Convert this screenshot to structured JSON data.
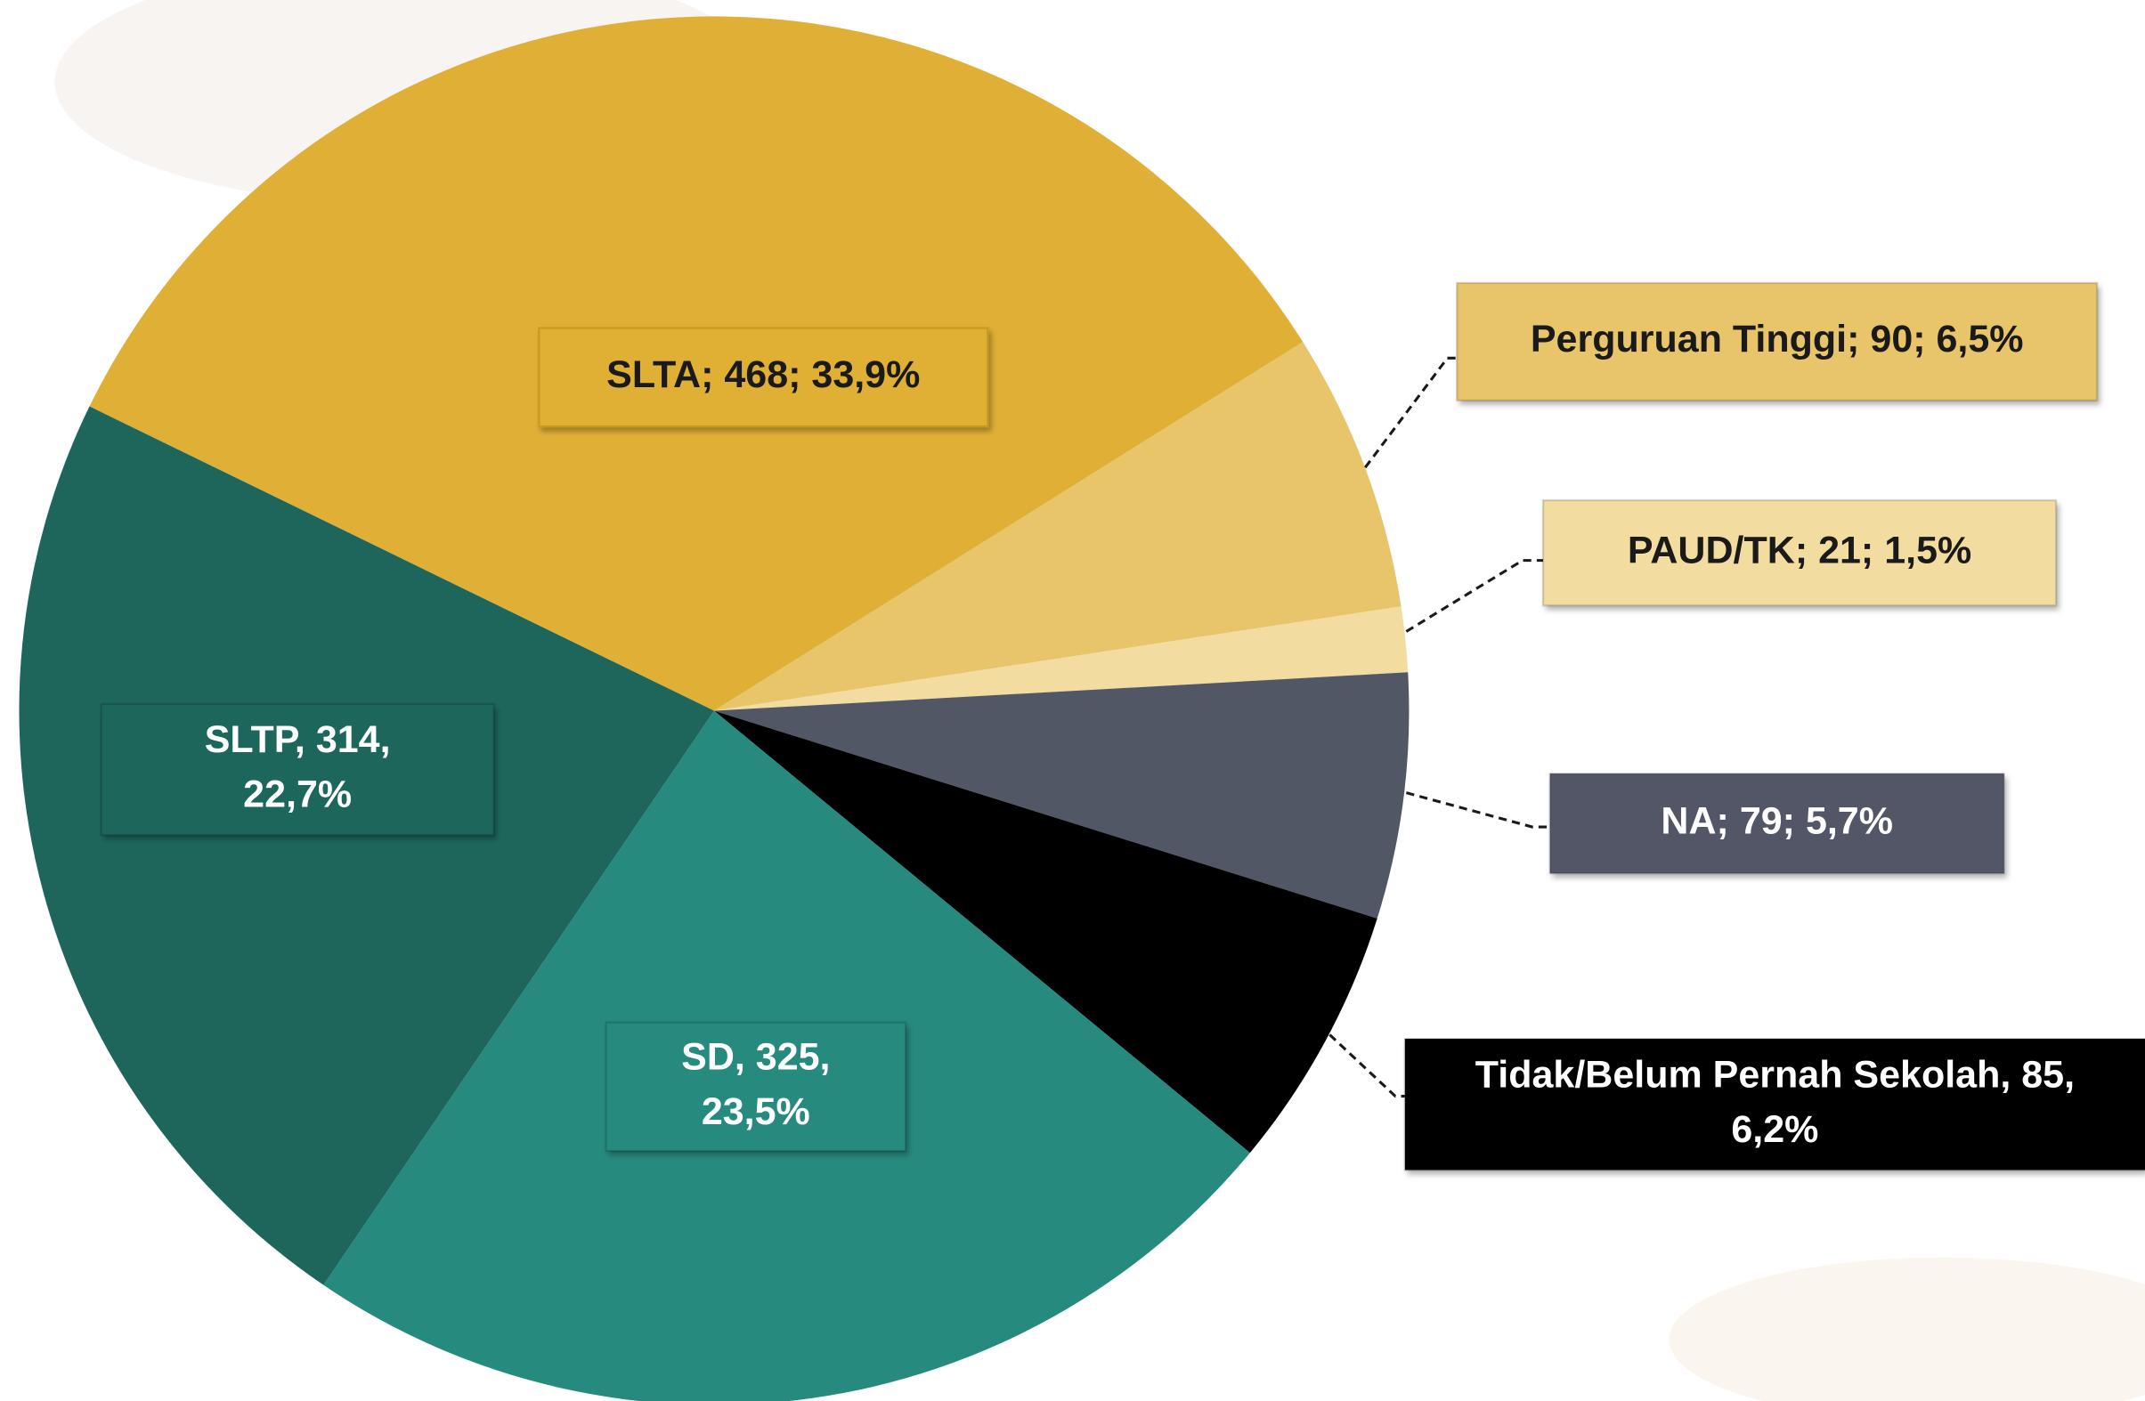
{
  "chart_data": {
    "type": "pie",
    "values": [
      468,
      90,
      21,
      79,
      85,
      325,
      314
    ],
    "value_labels": [
      [
        "SLTA; 468; 33,9%"
      ],
      [
        "Perguruan Tinggi; 90; 6,5%"
      ],
      [
        "PAUD/TK; 21; 1,5%"
      ],
      [
        "NA; 79; 5,7%"
      ],
      [
        "Tidak/Belum Pernah Sekolah, 85,",
        "6,2%"
      ],
      [
        "SD, 325,",
        "23,5%"
      ],
      [
        "SLTP, 314,",
        "22,7%"
      ]
    ],
    "colors": [
      "#e0b036",
      "#e8c46a",
      "#f2dca0",
      "#525766",
      "#000000",
      "#268a7e",
      "#1e665c"
    ]
  }
}
